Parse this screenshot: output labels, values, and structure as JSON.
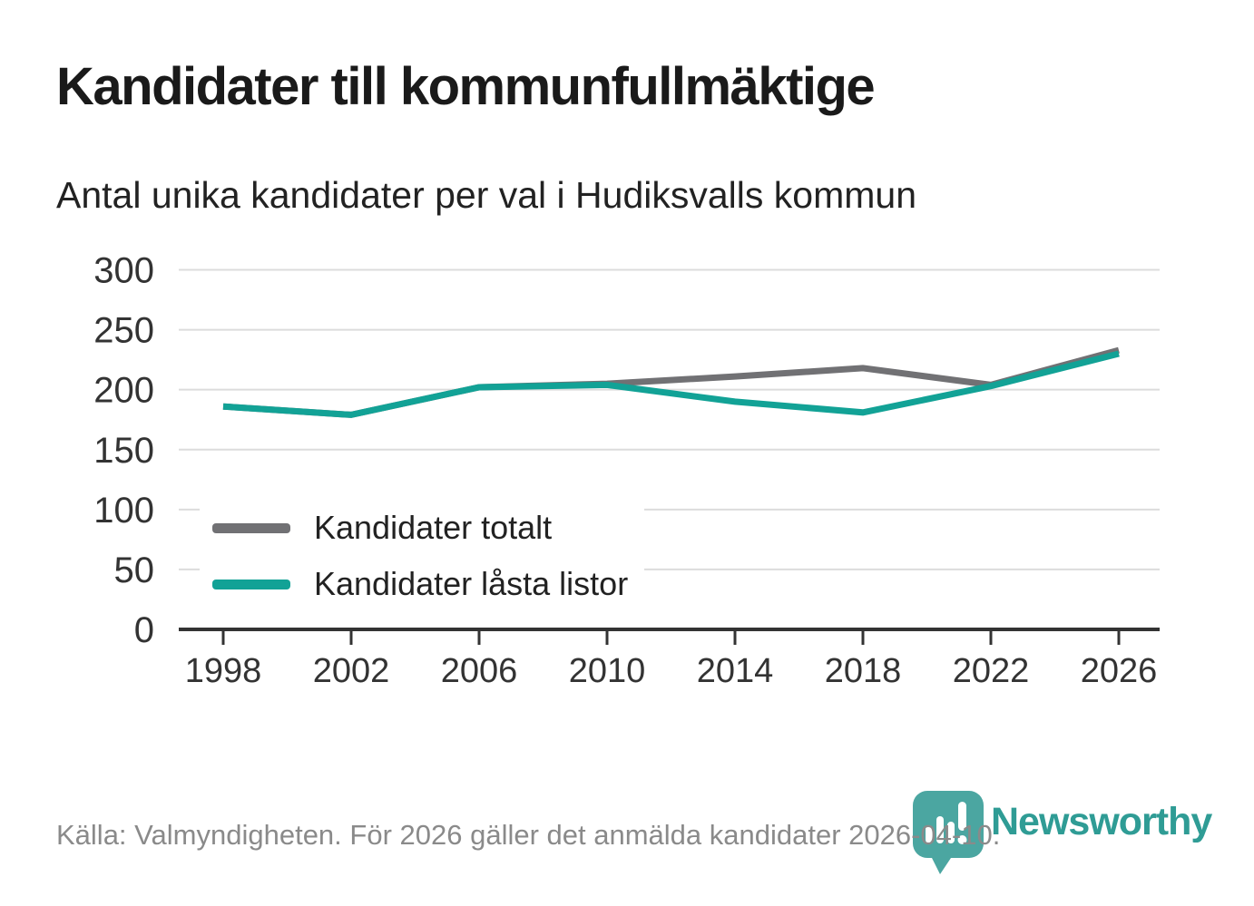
{
  "header": {
    "title": "Kandidater till kommunfullmäktige",
    "subtitle": "Antal unika kandidater per val i Hudiksvalls kommun"
  },
  "chart_data": {
    "type": "line",
    "title": "Kandidater till kommunfullmäktige",
    "subtitle": "Antal unika kandidater per val i Hudiksvalls kommun",
    "x": [
      1998,
      2002,
      2006,
      2010,
      2014,
      2018,
      2022,
      2026
    ],
    "series": [
      {
        "name": "Kandidater totalt",
        "color": "#717174",
        "values": [
          186,
          179,
          202,
          205,
          211,
          218,
          204,
          233
        ]
      },
      {
        "name": "Kandidater låsta listor",
        "color": "#12a296",
        "values": [
          186,
          179,
          202,
          204,
          190,
          181,
          203,
          230
        ]
      }
    ],
    "xlabel": "",
    "ylabel": "",
    "ylim": [
      0,
      300
    ],
    "yticks": [
      0,
      50,
      100,
      150,
      200,
      250,
      300
    ],
    "grid": "horizontal",
    "legend_position": "inside-bottom-left"
  },
  "colors": {
    "axis": "#333333",
    "gridline": "#dcdcdc",
    "tick_label": "#333333"
  },
  "footer": {
    "source": "Källa: Valmyndigheten. För 2026 gäller det anmälda kandidater 2026-04-10."
  },
  "logo": {
    "text": "Newsworthy",
    "icon": "newsworthy-bubble-chart-icon",
    "text_color": "#2f9c95",
    "bubble_color": "#4ba6a1"
  }
}
